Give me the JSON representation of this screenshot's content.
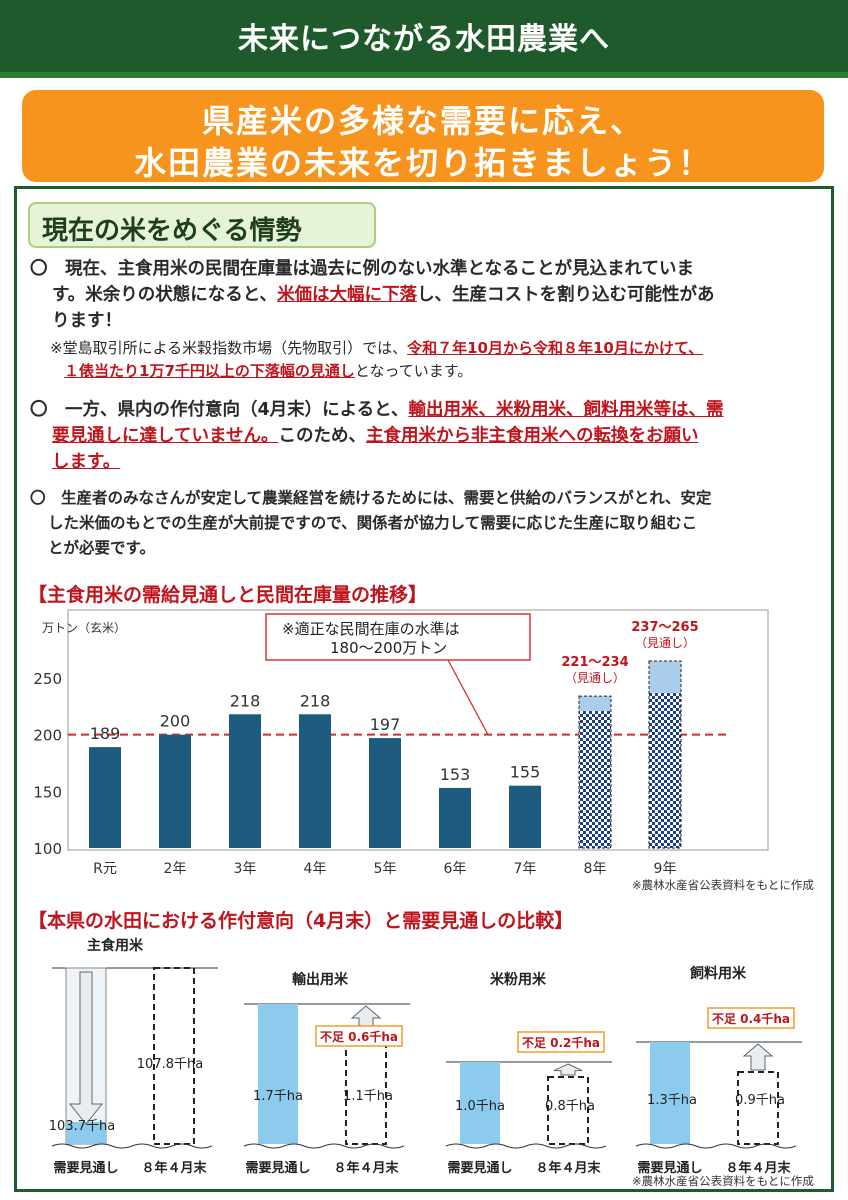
{
  "header": {
    "title": "未来につながる水田農業へ"
  },
  "banner": {
    "line1": "県産米の多様な需要に応え、",
    "line2": "水田農業の未来を切り拓きましょう！"
  },
  "section": {
    "title": "現在の米をめぐる情勢"
  },
  "paragraphs": {
    "p1_a": "〇　現在、主食用米の民間在庫量は過去に例のない水準となることが見込まれていま",
    "p1_b_pre": "す。米余りの状態になると、",
    "p1_b_red": "米価は大幅に下落",
    "p1_b_post": "し、生産コストを割り込む可能性があ",
    "p1_c": "ります！",
    "note_pre": "※堂島取引所による米穀指数市場（先物取引）では、",
    "note_red1": "令和７年10月から令和８年10月にかけて、",
    "note_red2": "１俵当たり1万7千円以上の下落幅の見通し",
    "note_post": "となっています。",
    "p2_a_pre": "〇　一方、県内の作付意向（4月末）によると、",
    "p2_a_red": "輸出用米、米粉用米、飼料用米等は、需",
    "p2_b_red": "要見通しに達していません。",
    "p2_b_mid": "このため、",
    "p2_b_red2": "主食用米から非主食用米への転換をお願い",
    "p2_c_red": "します。",
    "p3_a": "〇　生産者のみなさんが安定して農業経営を続けるためには、需要と供給のバランスがとれ、安定",
    "p3_b": "した米価のもとでの生産が大前提ですので、関係者が協力して需要に応じた生産に取り組むこ",
    "p3_c": "とが必要です。"
  },
  "chart1": {
    "heading": "【主食用米の需給見通しと民間在庫量の推移】",
    "source": "※農林水産省公表資料をもとに作成"
  },
  "chart_data": [
    {
      "type": "bar",
      "title": "【主食用米の需給見通しと民間在庫量の推移】",
      "ylabel": "万トン（玄米）",
      "ylim": [
        100,
        250
      ],
      "yticks": [
        100,
        150,
        200,
        250
      ],
      "categories": [
        "R元",
        "2年",
        "3年",
        "4年",
        "5年",
        "6年",
        "7年",
        "8年",
        "9年"
      ],
      "values": [
        189,
        200,
        218,
        218,
        197,
        153,
        155,
        null,
        null
      ],
      "value_labels": [
        "189",
        "200",
        "218",
        "218",
        "197",
        "153",
        "155",
        "",
        ""
      ],
      "projections": [
        {
          "category": "8年",
          "low": 221,
          "high": 234,
          "label": "221～234",
          "sub": "（見通し）"
        },
        {
          "category": "9年",
          "low": 237,
          "high": 265,
          "label": "237～265",
          "sub": "（見通し）"
        }
      ],
      "reference_line": {
        "value": 200,
        "note1": "※適正な民間在庫の水準は",
        "note2": "180～200万トン"
      },
      "colors": {
        "bar": "#1d5c7e",
        "projection": "#a9cdeb",
        "reference": "#d9262b"
      }
    },
    {
      "type": "bar",
      "title": "【本県の水田における作付意向（4月末）と需要見通しの比較】",
      "groups": [
        {
          "name": "主食用米",
          "demand": "103.7千ha",
          "intent": "107.8千ha",
          "shortage": ""
        },
        {
          "name": "輸出用米",
          "demand": "1.7千ha",
          "intent": "1.1千ha",
          "shortage": "不足 0.6千ha"
        },
        {
          "name": "米粉用米",
          "demand": "1.0千ha",
          "intent": "0.8千ha",
          "shortage": "不足 0.2千ha"
        },
        {
          "name": "飼料用米",
          "demand": "1.3千ha",
          "intent": "0.9千ha",
          "shortage": "不足 0.4千ha"
        }
      ],
      "bar_labels": {
        "demand": "需要見通し",
        "intent": "８年４月末"
      },
      "colors": {
        "demand": "#8ccbee",
        "shortage": "#c0141c"
      }
    }
  ],
  "chart2": {
    "heading": "【本県の水田における作付意向（4月末）と需要見通しの比較】",
    "source": "※農林水産省公表資料をもとに作成"
  }
}
